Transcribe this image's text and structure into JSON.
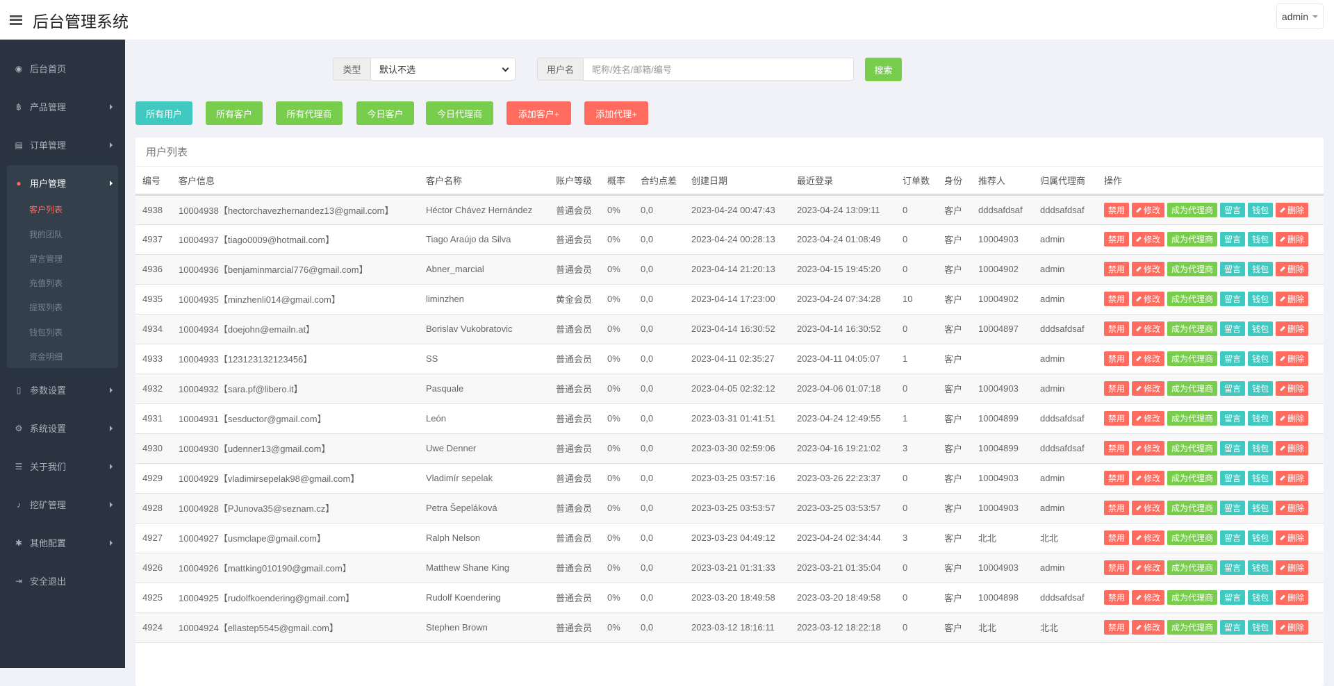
{
  "header": {
    "title": "后台管理系统",
    "user": "admin"
  },
  "sidebar": {
    "items": [
      {
        "label": "后台首页",
        "icon": "dashboard-icon",
        "glyph": "◉"
      },
      {
        "label": "产品管理",
        "icon": "bitcoin-icon",
        "glyph": "฿"
      },
      {
        "label": "订单管理",
        "icon": "files-icon",
        "glyph": "▤"
      },
      {
        "label": "用户管理",
        "icon": "user-icon",
        "glyph": "●"
      },
      {
        "label": "参数设置",
        "icon": "file-icon",
        "glyph": "▯"
      },
      {
        "label": "系统设置",
        "icon": "gears-icon",
        "glyph": "⚙"
      },
      {
        "label": "关于我们",
        "icon": "list-icon",
        "glyph": "☰"
      },
      {
        "label": "挖矿管理",
        "icon": "bell-icon",
        "glyph": "♪"
      },
      {
        "label": "其他配置",
        "icon": "gear-icon",
        "glyph": "✱"
      },
      {
        "label": "安全退出",
        "icon": "sign-out-icon",
        "glyph": "⇥"
      }
    ],
    "submenu": [
      "客户列表",
      "我的团队",
      "留言管理",
      "充值列表",
      "提现列表",
      "钱包列表",
      "资金明细"
    ],
    "active_sub": "客户列表"
  },
  "search": {
    "type_label": "类型",
    "type_value": "默认不选",
    "name_label": "用户名",
    "name_placeholder": "昵称/姓名/邮箱/编号",
    "search_button": "搜索"
  },
  "filters": [
    "所有用户",
    "所有客户",
    "所有代理商",
    "今日客户",
    "今日代理商",
    "添加客户+",
    "添加代理+"
  ],
  "colors": {
    "teal": "#3fc9c0",
    "green": "#79cd4d",
    "red": "#ff6b5e",
    "sidebar": "#2a3440"
  },
  "table": {
    "title": "用户列表",
    "columns": [
      "编号",
      "客户信息",
      "客户名称",
      "账户等级",
      "概率",
      "合约点差",
      "创建日期",
      "最近登录",
      "订单数",
      "身份",
      "推荐人",
      "归属代理商",
      "操作"
    ],
    "actions": [
      "禁用",
      "修改",
      "成为代理商",
      "留言",
      "钱包",
      "删除"
    ],
    "rows": [
      [
        "4938",
        "10004938【hectorchavezhernandez13@gmail.com】",
        "Héctor Chávez Hernández",
        "普通会员",
        "0%",
        "0,0",
        "2023-04-24 00:47:43",
        "2023-04-24 13:09:11",
        "0",
        "客户",
        "dddsafdsaf",
        "dddsafdsaf"
      ],
      [
        "4937",
        "10004937【tiago0009@hotmail.com】",
        "Tiago Araújo da Silva",
        "普通会员",
        "0%",
        "0,0",
        "2023-04-24 00:28:13",
        "2023-04-24 01:08:49",
        "0",
        "客户",
        "10004903",
        "admin"
      ],
      [
        "4936",
        "10004936【benjaminmarcial776@gmail.com】",
        "Abner_marcial",
        "普通会员",
        "0%",
        "0,0",
        "2023-04-14 21:20:13",
        "2023-04-15 19:45:20",
        "0",
        "客户",
        "10004902",
        "admin"
      ],
      [
        "4935",
        "10004935【minzhenli014@gmail.com】",
        "liminzhen",
        "黄金会员",
        "0%",
        "0,0",
        "2023-04-14 17:23:00",
        "2023-04-24 07:34:28",
        "10",
        "客户",
        "10004902",
        "admin"
      ],
      [
        "4934",
        "10004934【doejohn@emailn.at】",
        "Borislav Vukobratovic",
        "普通会员",
        "0%",
        "0,0",
        "2023-04-14 16:30:52",
        "2023-04-14 16:30:52",
        "0",
        "客户",
        "10004897",
        "dddsafdsaf"
      ],
      [
        "4933",
        "10004933【123123132123456】",
        "SS",
        "普通会员",
        "0%",
        "0,0",
        "2023-04-11 02:35:27",
        "2023-04-11 04:05:07",
        "1",
        "客户",
        "",
        "admin"
      ],
      [
        "4932",
        "10004932【sara.pf@libero.it】",
        "Pasquale",
        "普通会员",
        "0%",
        "0,0",
        "2023-04-05 02:32:12",
        "2023-04-06 01:07:18",
        "0",
        "客户",
        "10004903",
        "admin"
      ],
      [
        "4931",
        "10004931【sesductor@gmail.com】",
        "León",
        "普通会员",
        "0%",
        "0,0",
        "2023-03-31 01:41:51",
        "2023-04-24 12:49:55",
        "1",
        "客户",
        "10004899",
        "dddsafdsaf"
      ],
      [
        "4930",
        "10004930【udenner13@gmail.com】",
        "Uwe Denner",
        "普通会员",
        "0%",
        "0,0",
        "2023-03-30 02:59:06",
        "2023-04-16 19:21:02",
        "3",
        "客户",
        "10004899",
        "dddsafdsaf"
      ],
      [
        "4929",
        "10004929【vladimirsepelak98@gmail.com】",
        "Vladimír sepelak",
        "普通会员",
        "0%",
        "0,0",
        "2023-03-25 03:57:16",
        "2023-03-26 22:23:37",
        "0",
        "客户",
        "10004903",
        "admin"
      ],
      [
        "4928",
        "10004928【PJunova35@seznam.cz】",
        "Petra Šepeláková",
        "普通会员",
        "0%",
        "0,0",
        "2023-03-25 03:53:57",
        "2023-03-25 03:53:57",
        "0",
        "客户",
        "10004903",
        "admin"
      ],
      [
        "4927",
        "10004927【usmclape@gmail.com】",
        "Ralph Nelson",
        "普通会员",
        "0%",
        "0,0",
        "2023-03-23 04:49:12",
        "2023-04-24 02:34:44",
        "3",
        "客户",
        "北北",
        "北北"
      ],
      [
        "4926",
        "10004926【mattking010190@gmail.com】",
        "Matthew Shane King",
        "普通会员",
        "0%",
        "0,0",
        "2023-03-21 01:31:33",
        "2023-03-21 01:35:04",
        "0",
        "客户",
        "10004903",
        "admin"
      ],
      [
        "4925",
        "10004925【rudolfkoendering@gmail.com】",
        "Rudolf Koendering",
        "普通会员",
        "0%",
        "0,0",
        "2023-03-20 18:49:58",
        "2023-03-20 18:49:58",
        "0",
        "客户",
        "10004898",
        "dddsafdsaf"
      ],
      [
        "4924",
        "10004924【ellastep5545@gmail.com】",
        "Stephen Brown",
        "普通会员",
        "0%",
        "0,0",
        "2023-03-12 18:16:11",
        "2023-03-12 18:22:18",
        "0",
        "客户",
        "北北",
        "北北"
      ]
    ]
  }
}
